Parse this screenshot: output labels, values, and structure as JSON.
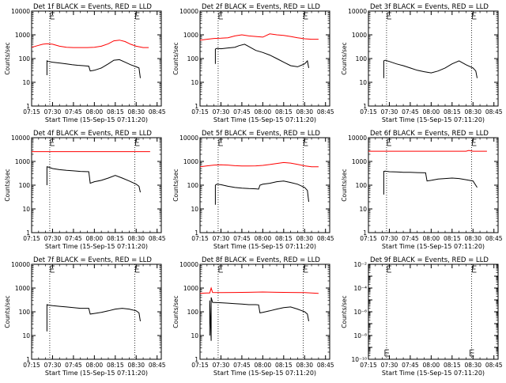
{
  "colors": {
    "events": "#000000",
    "lld": "#ff0000",
    "background": "#ffffff",
    "axes": "#000000"
  },
  "ylabel": "Counts/sec",
  "xlabel": "Start Time (15-Sep-15 07:11:20)",
  "x_tick_labels": [
    "07:15",
    "07:30",
    "07:45",
    "08:00",
    "08:15",
    "08:30",
    "08:45"
  ],
  "marker_times": [
    "07:28",
    "08:29"
  ],
  "chart_data": [
    {
      "type": "line",
      "title": "Det 1f BLACK = Events, RED = LLD",
      "ylog": true,
      "ylim": [
        1,
        10000
      ],
      "ytick_labels": [
        "1",
        "10",
        "100",
        "1000",
        "10000"
      ],
      "series": [
        {
          "color": "#ff0000",
          "x": [
            "07:15",
            "07:17",
            "07:20",
            "07:23",
            "07:26",
            "07:30",
            "07:35",
            "07:40",
            "07:45",
            "07:50",
            "07:55",
            "08:00",
            "08:05",
            "08:10",
            "08:14",
            "08:18",
            "08:22",
            "08:26",
            "08:30",
            "08:35",
            "08:39"
          ],
          "values": [
            300,
            320,
            360,
            400,
            420,
            400,
            330,
            300,
            290,
            290,
            290,
            300,
            330,
            420,
            560,
            600,
            520,
            400,
            330,
            290,
            290
          ]
        },
        {
          "color": "#000000",
          "x": [
            "07:26",
            "07:26",
            "07:27",
            "07:30",
            "07:35",
            "07:40",
            "07:44",
            "07:48",
            "07:52",
            "07:56",
            "07:57",
            "08:00",
            "08:05",
            "08:10",
            "08:14",
            "08:18",
            "08:22",
            "08:26",
            "08:30",
            "08:32",
            "08:33"
          ],
          "values": [
            20,
            80,
            75,
            70,
            65,
            60,
            55,
            52,
            50,
            48,
            30,
            32,
            40,
            60,
            85,
            90,
            70,
            55,
            45,
            40,
            15
          ]
        }
      ]
    },
    {
      "type": "line",
      "title": "Det 2f BLACK = Events, RED = LLD",
      "ylog": true,
      "ylim": [
        1,
        10000
      ],
      "ytick_labels": [
        "1",
        "10",
        "100",
        "1000",
        "10000"
      ],
      "series": [
        {
          "color": "#ff0000",
          "x": [
            "07:15",
            "07:20",
            "07:25",
            "07:30",
            "07:35",
            "07:40",
            "07:45",
            "07:50",
            "07:55",
            "08:00",
            "08:05",
            "08:10",
            "08:15",
            "08:20",
            "08:25",
            "08:30",
            "08:35",
            "08:40"
          ],
          "values": [
            600,
            650,
            700,
            720,
            750,
            900,
            1000,
            900,
            850,
            800,
            1100,
            1000,
            950,
            850,
            750,
            680,
            650,
            650
          ]
        },
        {
          "color": "#000000",
          "x": [
            "07:26",
            "07:26",
            "07:27",
            "07:30",
            "07:35",
            "07:40",
            "07:43",
            "07:47",
            "07:50",
            "07:55",
            "08:00",
            "08:05",
            "08:10",
            "08:15",
            "08:20",
            "08:25",
            "08:30",
            "08:32",
            "08:33"
          ],
          "values": [
            60,
            250,
            270,
            260,
            280,
            300,
            350,
            400,
            320,
            220,
            180,
            140,
            100,
            70,
            50,
            45,
            60,
            80,
            40
          ]
        }
      ]
    },
    {
      "type": "line",
      "title": "Det 3f BLACK = Events, RED = LLD",
      "ylog": true,
      "ylim": [
        1,
        10000
      ],
      "ytick_labels": [
        "1",
        "10",
        "100",
        "1000",
        "10000"
      ],
      "series": [
        {
          "color": "#000000",
          "x": [
            "07:26",
            "07:26",
            "07:27",
            "07:30",
            "07:35",
            "07:40",
            "07:45",
            "07:50",
            "07:55",
            "08:00",
            "08:05",
            "08:10",
            "08:15",
            "08:20",
            "08:25",
            "08:30",
            "08:32",
            "08:33"
          ],
          "values": [
            15,
            80,
            85,
            75,
            60,
            50,
            40,
            32,
            28,
            25,
            30,
            40,
            60,
            80,
            55,
            40,
            30,
            15
          ]
        }
      ]
    },
    {
      "type": "line",
      "title": "Det 4f BLACK = Events, RED = LLD",
      "ylog": true,
      "ylim": [
        1,
        10000
      ],
      "ytick_labels": [
        "1",
        "10",
        "100",
        "1000",
        "10000"
      ],
      "series": [
        {
          "color": "#ff0000",
          "x": [
            "07:15",
            "08:40"
          ],
          "values": [
            2600,
            2600
          ]
        },
        {
          "color": "#000000",
          "x": [
            "07:26",
            "07:26",
            "07:27",
            "07:30",
            "07:35",
            "07:40",
            "07:45",
            "07:50",
            "07:56",
            "07:57",
            "08:00",
            "08:05",
            "08:10",
            "08:15",
            "08:20",
            "08:25",
            "08:30",
            "08:32",
            "08:33"
          ],
          "values": [
            100,
            600,
            580,
            500,
            450,
            420,
            400,
            380,
            370,
            120,
            140,
            160,
            200,
            260,
            200,
            150,
            110,
            90,
            50
          ]
        }
      ]
    },
    {
      "type": "line",
      "title": "Det 5f BLACK = Events, RED = LLD",
      "ylog": true,
      "ylim": [
        1,
        10000
      ],
      "ytick_labels": [
        "1",
        "10",
        "100",
        "1000",
        "10000"
      ],
      "series": [
        {
          "color": "#ff0000",
          "x": [
            "07:15",
            "07:20",
            "07:25",
            "07:30",
            "07:35",
            "07:40",
            "07:45",
            "07:50",
            "07:55",
            "08:00",
            "08:05",
            "08:10",
            "08:15",
            "08:20",
            "08:25",
            "08:30",
            "08:35",
            "08:40"
          ],
          "values": [
            600,
            650,
            700,
            720,
            700,
            660,
            640,
            640,
            650,
            680,
            740,
            820,
            900,
            850,
            750,
            650,
            600,
            600
          ]
        },
        {
          "color": "#000000",
          "x": [
            "07:26",
            "07:26",
            "07:27",
            "07:30",
            "07:35",
            "07:40",
            "07:45",
            "07:50",
            "07:55",
            "07:57",
            "07:58",
            "08:00",
            "08:05",
            "08:10",
            "08:15",
            "08:20",
            "08:25",
            "08:30",
            "08:32",
            "08:33"
          ],
          "values": [
            15,
            100,
            110,
            105,
            90,
            80,
            75,
            72,
            70,
            68,
            100,
            110,
            120,
            140,
            150,
            130,
            110,
            80,
            60,
            20
          ]
        }
      ]
    },
    {
      "type": "line",
      "title": "Det 6f BLACK = Events, RED = LLD",
      "ylog": true,
      "ylim": [
        1,
        10000
      ],
      "ytick_labels": [
        "1",
        "10",
        "100",
        "1000",
        "10000"
      ],
      "series": [
        {
          "color": "#ff0000",
          "x": [
            "07:15",
            "08:25",
            "08:27",
            "08:30",
            "08:40"
          ],
          "values": [
            2700,
            2700,
            2900,
            2700,
            2700
          ]
        },
        {
          "color": "#000000",
          "x": [
            "07:26",
            "07:26",
            "07:27",
            "07:30",
            "07:35",
            "07:40",
            "07:45",
            "07:50",
            "07:56",
            "07:57",
            "08:00",
            "08:05",
            "08:10",
            "08:15",
            "08:20",
            "08:25",
            "08:30",
            "08:33"
          ],
          "values": [
            40,
            380,
            390,
            370,
            360,
            350,
            350,
            340,
            330,
            150,
            160,
            180,
            190,
            200,
            190,
            170,
            150,
            80
          ]
        }
      ]
    },
    {
      "type": "line",
      "title": "Det 7f BLACK = Events, RED = LLD",
      "ylog": true,
      "ylim": [
        1,
        10000
      ],
      "ytick_labels": [
        "1",
        "10",
        "100",
        "1000",
        "10000"
      ],
      "series": [
        {
          "color": "#000000",
          "x": [
            "07:26",
            "07:26",
            "07:27",
            "07:30",
            "07:35",
            "07:40",
            "07:45",
            "07:50",
            "07:56",
            "07:57",
            "08:00",
            "08:05",
            "08:10",
            "08:15",
            "08:20",
            "08:25",
            "08:30",
            "08:32",
            "08:33"
          ],
          "values": [
            15,
            200,
            190,
            180,
            170,
            160,
            150,
            140,
            140,
            80,
            85,
            95,
            110,
            130,
            140,
            130,
            110,
            90,
            40
          ]
        }
      ]
    },
    {
      "type": "line",
      "title": "Det 8f BLACK = Events, RED = LLD",
      "ylog": true,
      "ylim": [
        1,
        10000
      ],
      "ytick_labels": [
        "1",
        "10",
        "100",
        "1000",
        "10000"
      ],
      "series": [
        {
          "color": "#ff0000",
          "x": [
            "07:15",
            "07:20",
            "07:22",
            "07:23",
            "07:24",
            "07:30",
            "07:40",
            "07:50",
            "08:00",
            "08:10",
            "08:20",
            "08:30",
            "08:40"
          ],
          "values": [
            600,
            620,
            620,
            1000,
            650,
            640,
            650,
            660,
            680,
            660,
            650,
            640,
            600
          ]
        },
        {
          "color": "#000000",
          "x": [
            "07:22",
            "07:22",
            "07:23",
            "07:23",
            "07:24",
            "07:30",
            "07:35",
            "07:40",
            "07:45",
            "07:50",
            "07:55",
            "07:57",
            "07:58",
            "08:00",
            "08:05",
            "08:10",
            "08:15",
            "08:20",
            "08:25",
            "08:30",
            "08:32",
            "08:33"
          ],
          "values": [
            10,
            300,
            6,
            400,
            250,
            240,
            230,
            220,
            210,
            200,
            200,
            195,
            90,
            95,
            110,
            130,
            150,
            160,
            130,
            100,
            80,
            40
          ]
        }
      ]
    },
    {
      "type": "line",
      "title": "Det 9f BLACK = Events, RED = LLD",
      "ylog": true,
      "ylim": [
        1e-10,
        0.01
      ],
      "ytick_labels": [
        "10⁻²",
        "10⁻⁴",
        "10⁻⁶",
        "10⁻⁸",
        "10⁻¹⁰"
      ],
      "series": []
    }
  ]
}
